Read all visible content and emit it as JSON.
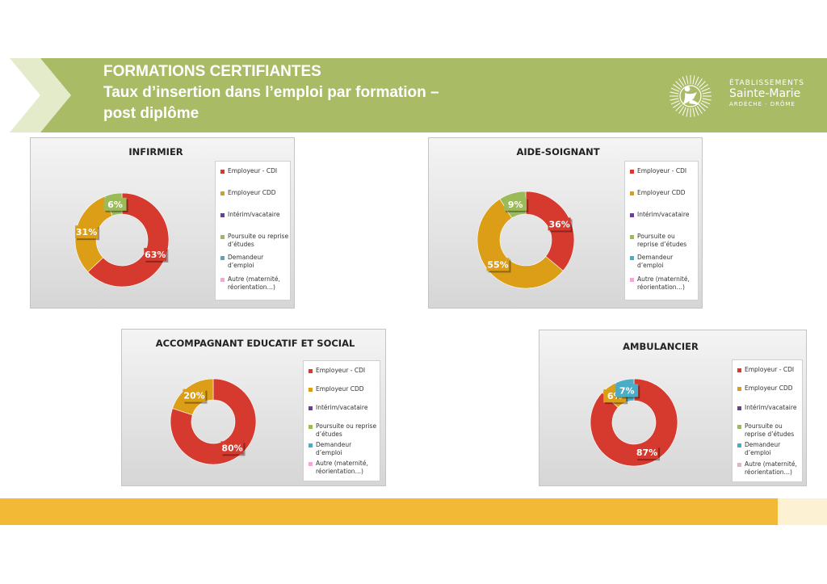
{
  "header": {
    "title_line1": "FORMATIONS CERTIFIANTES",
    "title_line2": "Taux d’insertion dans l’emploi par formation –",
    "title_line3": "post diplôme",
    "logo": {
      "line1": "ÉTABLISSEMENTS",
      "line2": "Sainte-Marie",
      "line3": "ARDÈCHE · DRÔME",
      "icon": "sun-figure-icon"
    },
    "colors": {
      "banner_green": "#aabb66",
      "banner_light": "#e3ebcb",
      "footer_yellow": "#f2b937"
    }
  },
  "legend": [
    {
      "label": "Employeur - CDI",
      "color": "#d63a2f"
    },
    {
      "label": "Employeur CDD",
      "color": "#dc9e16"
    },
    {
      "label": "Intérim/vacataire",
      "color": "#6a3d96"
    },
    {
      "label": "Poursuite ou reprise d’études",
      "color": "#9bbb59"
    },
    {
      "label": "Demandeur d’emploi",
      "color": "#4bacc6"
    },
    {
      "label": "Autre (maternité, réorientation…)",
      "color": "#f2a7d8"
    }
  ],
  "chart_data": [
    {
      "type": "pie",
      "variant": "donut",
      "title": "INFIRMIER",
      "categories": [
        "Employeur - CDI",
        "Employeur CDD",
        "Intérim/vacataire",
        "Poursuite ou reprise d’études",
        "Demandeur d’emploi",
        "Autre (maternité, réorientation…)"
      ],
      "values": [
        63,
        31,
        0,
        6,
        0,
        0
      ],
      "data_labels": [
        "63%",
        "31%",
        "",
        "6%",
        "",
        ""
      ],
      "legend_position": "right"
    },
    {
      "type": "pie",
      "variant": "donut",
      "title": "AIDE-SOIGNANT",
      "categories": [
        "Employeur - CDI",
        "Employeur CDD",
        "Intérim/vacataire",
        "Poursuite ou reprise d’études",
        "Demandeur d’emploi",
        "Autre (maternité, réorientation…)"
      ],
      "values": [
        36,
        55,
        0,
        9,
        0,
        0
      ],
      "data_labels": [
        "36%",
        "55%",
        "",
        "9%",
        "",
        ""
      ],
      "legend_position": "right"
    },
    {
      "type": "pie",
      "variant": "donut",
      "title": "ACCOMPAGNANT EDUCATIF ET SOCIAL",
      "categories": [
        "Employeur - CDI",
        "Employeur CDD",
        "Intérim/vacataire",
        "Poursuite ou reprise d’études",
        "Demandeur d’emploi",
        "Autre (maternité, réorientation…)"
      ],
      "values": [
        80,
        20,
        0,
        0,
        0,
        0
      ],
      "data_labels": [
        "80%",
        "20%",
        "",
        "",
        "",
        ""
      ],
      "legend_position": "right"
    },
    {
      "type": "pie",
      "variant": "donut",
      "title": "AMBULANCIER",
      "categories": [
        "Employeur - CDI",
        "Employeur CDD",
        "Intérim/vacataire",
        "Poursuite ou reprise d’études",
        "Demandeur d’emploi",
        "Autre (maternité, réorientation…)"
      ],
      "values": [
        87,
        6,
        0,
        0,
        7,
        0
      ],
      "data_labels": [
        "87%",
        "6%",
        "",
        "",
        "7%",
        ""
      ],
      "legend_position": "right"
    }
  ]
}
